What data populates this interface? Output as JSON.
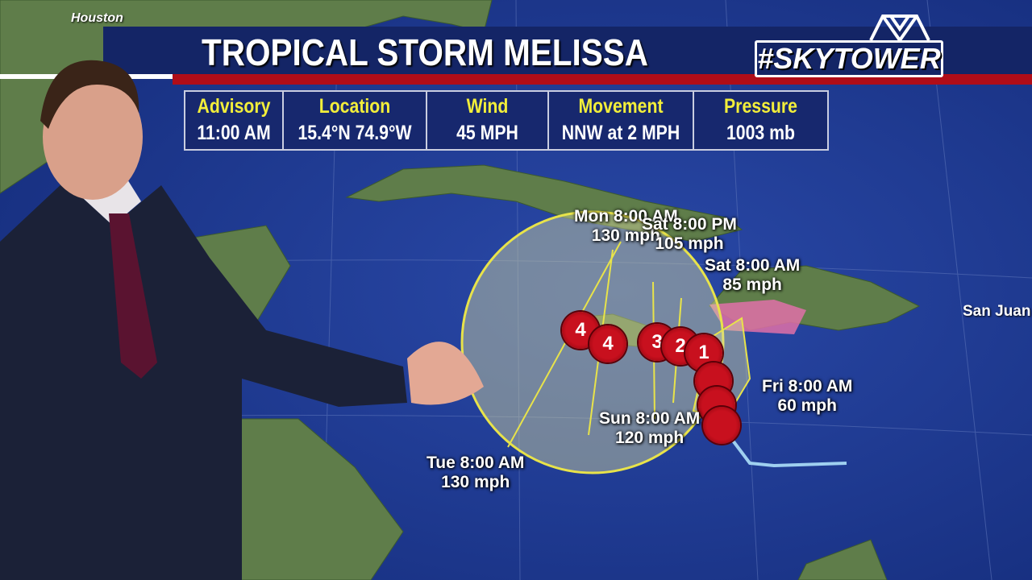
{
  "station_label": "Houston",
  "title": "TROPICAL STORM MELISSA",
  "logo_text": "#SKYTOWER",
  "info_table": [
    {
      "header": "Advisory",
      "value": "11:00 AM"
    },
    {
      "header": "Location",
      "value": "15.4°N  74.9°W"
    },
    {
      "header": "Wind",
      "value": "45 MPH"
    },
    {
      "header": "Movement",
      "value": "NNW at 2 MPH"
    },
    {
      "header": "Pressure",
      "value": "1003 mb"
    }
  ],
  "forecast_labels": [
    {
      "time": "Mon 8:00 AM",
      "wind": "130 mph"
    },
    {
      "time": "Sat 8:00 PM",
      "wind": "105 mph"
    },
    {
      "time": "Sat 8:00 AM",
      "wind": "85 mph"
    },
    {
      "time": "Fri 8:00 AM",
      "wind": "60 mph"
    },
    {
      "time": "Sun 8:00 AM",
      "wind": "120 mph"
    },
    {
      "time": "Tue 8:00 AM",
      "wind": "130 mph"
    }
  ],
  "storm_categories": [
    "4",
    "4",
    "3",
    "2",
    "1"
  ],
  "city": "San Juan",
  "colors": {
    "ocean": "#1f3b8f",
    "banner": "#142566",
    "accent_red": "#b00d18",
    "header_yellow": "#f2ee3a",
    "cone": "#e8e34a",
    "warning_pink": "#e070a8",
    "storm_red": "#c8101e"
  }
}
